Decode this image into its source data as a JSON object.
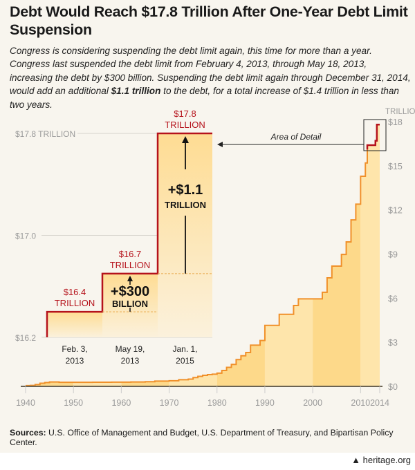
{
  "title": "Debt Would Reach $17.8 Trillion After One-Year Debt Limit Suspension",
  "subtitle": {
    "pre": "Congress is considering suspending the debt limit again, this time for more than a year. Congress last suspended the debt limit from February 4, 2013, through May 18, 2013, increasing the debt by $300 billion. Suspending the debt limit again through December 31, 2014, would add an additional ",
    "bold": "$1.1 trillion",
    "post": " to the debt, for a total increase of $1.4 trillion in less than two years."
  },
  "sources": {
    "label": "Sources:",
    "text": " U.S. Office of Management and Budget, U.S. Department of Treasury, and Bipartisan Policy Center."
  },
  "logo": {
    "icon": "liberty-bell-icon",
    "text": "heritage.org"
  },
  "colors": {
    "line": "#f0902a",
    "limit_red": "#b5121b",
    "fill_dark": "#fdd98a",
    "fill_light": "#fee5ab",
    "axis_text": "#9a9a9a",
    "background": "#f8f5ee"
  },
  "chart_data": [
    {
      "type": "area",
      "step": true,
      "unit_label": "TRILLION",
      "xlim": [
        1940,
        2014
      ],
      "ylim": [
        0,
        18
      ],
      "x_ticks": [
        "1940",
        "1950",
        "1960",
        "1970",
        "1980",
        "1990",
        "2000",
        "2010",
        "2014"
      ],
      "y_ticks": [
        "$0",
        "$3",
        "$6",
        "$9",
        "$12",
        "$15",
        "$18"
      ],
      "annotation": "Area of Detail",
      "series": [
        {
          "x": [
            1940,
            1941,
            1942,
            1943,
            1944,
            1945,
            1947,
            1954,
            1958,
            1962,
            1965,
            1967,
            1970,
            1972,
            1974,
            1975,
            1976,
            1977,
            1978,
            1979,
            1980,
            1981,
            1982,
            1983,
            1984,
            1985,
            1986,
            1987,
            1989,
            1990,
            1993,
            1996,
            1997,
            2002,
            2003,
            2004,
            2006,
            2007,
            2008,
            2009,
            2010,
            2011
          ],
          "y": [
            0.05,
            0.065,
            0.125,
            0.21,
            0.26,
            0.3,
            0.275,
            0.28,
            0.29,
            0.3,
            0.32,
            0.36,
            0.38,
            0.45,
            0.495,
            0.6,
            0.68,
            0.75,
            0.8,
            0.83,
            0.9,
            1.08,
            1.29,
            1.49,
            1.82,
            2.08,
            2.3,
            2.8,
            3.12,
            4.15,
            4.9,
            5.5,
            5.95,
            6.4,
            7.38,
            8.18,
            8.97,
            9.82,
            11.32,
            12.39,
            14.29,
            15.19
          ]
        },
        {
          "x": [
            2011.4,
            2013.1,
            2013.4
          ],
          "y": [
            16.4,
            16.7,
            17.8
          ]
        }
      ]
    },
    {
      "type": "line",
      "step": true,
      "ylim": [
        16.2,
        17.8
      ],
      "y_ticks": [
        "$16.2",
        "$17.0",
        "$17.8 TRILLION"
      ],
      "categories": [
        "Feb. 3, 2013",
        "May 19, 2013",
        "Jan. 1, 2015"
      ],
      "values": [
        16.4,
        16.7,
        17.8
      ],
      "data_labels": [
        [
          "$16.4",
          "TRILLION"
        ],
        [
          "$16.7",
          "TRILLION"
        ],
        [
          "$17.8",
          "TRILLION"
        ]
      ],
      "increases": [
        [
          "+$300",
          "BILLION"
        ],
        [
          "+$1.1",
          "TRILLION"
        ]
      ]
    }
  ]
}
